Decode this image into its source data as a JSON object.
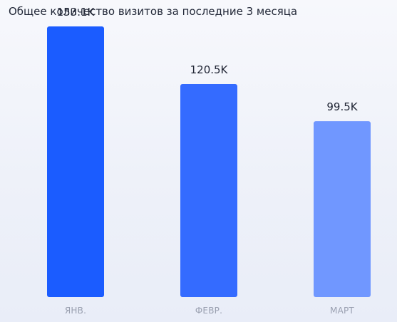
{
  "chart_data": {
    "type": "bar",
    "title": "Общее количество визитов за последние 3 месяца",
    "categories": [
      "ЯНВ.",
      "ФЕВР.",
      "МАРТ"
    ],
    "values": [
      153100,
      120500,
      99500
    ],
    "value_labels": [
      "153.1K",
      "120.5K",
      "99.5K"
    ],
    "bar_colors": [
      "#1b5cff",
      "#346bff",
      "#7097ff"
    ],
    "ylim": [
      0,
      160000
    ],
    "grid": false,
    "legend": "none"
  }
}
